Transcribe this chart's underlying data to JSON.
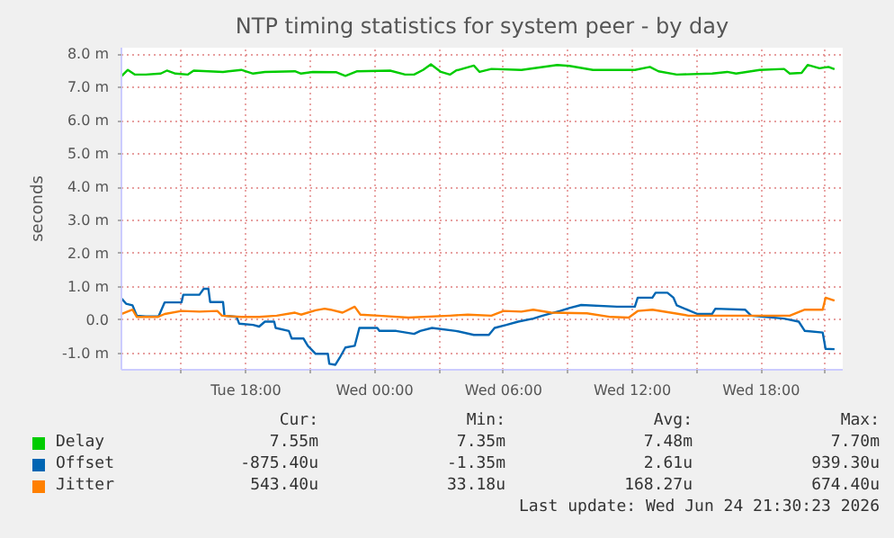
{
  "chart_data": {
    "type": "line",
    "title": "NTP timing statistics for system peer - by day",
    "ylabel": "seconds",
    "xlim": [
      "2026-06-23T12:12",
      "2026-06-24T21:48"
    ],
    "xticks": [
      {
        "value": "2026-06-23T15:00",
        "label": null
      },
      {
        "value": "2026-06-23T18:00",
        "label": "Tue 18:00"
      },
      {
        "value": "2026-06-23T21:00",
        "label": null
      },
      {
        "value": "2026-06-24T00:00",
        "label": "Wed 00:00"
      },
      {
        "value": "2026-06-24T03:00",
        "label": null
      },
      {
        "value": "2026-06-24T06:00",
        "label": "Wed 06:00"
      },
      {
        "value": "2026-06-24T09:00",
        "label": null
      },
      {
        "value": "2026-06-24T12:00",
        "label": "Wed 12:00"
      },
      {
        "value": "2026-06-24T15:00",
        "label": null
      },
      {
        "value": "2026-06-24T18:00",
        "label": "Wed 18:00"
      },
      {
        "value": "2026-06-24T21:00",
        "label": null
      }
    ],
    "ylim": [
      -1.5,
      8.2
    ],
    "yticks": [
      {
        "value": -1,
        "label": "-1.0 m"
      },
      {
        "value": 0,
        "label": "0.0"
      },
      {
        "value": 1,
        "label": "1.0 m"
      },
      {
        "value": 2,
        "label": "2.0 m"
      },
      {
        "value": 3,
        "label": "3.0 m"
      },
      {
        "value": 4,
        "label": "4.0 m"
      },
      {
        "value": 5,
        "label": "5.0 m"
      },
      {
        "value": 6,
        "label": "6.0 m"
      },
      {
        "value": 7,
        "label": "7.0 m"
      },
      {
        "value": 8,
        "label": "8.0 m"
      }
    ],
    "grid": true,
    "legend": "bottom",
    "series": [
      {
        "name": "Delay",
        "color": "#00cc00",
        "x": [
          "2026-06-23T12:13",
          "2026-06-23T12:30",
          "2026-06-23T12:50",
          "2026-06-23T13:20",
          "2026-06-23T14:02",
          "2026-06-23T14:19",
          "2026-06-23T14:43",
          "2026-06-23T15:17",
          "2026-06-23T15:34",
          "2026-06-23T16:56",
          "2026-06-23T17:47",
          "2026-06-23T18:20",
          "2026-06-23T18:53",
          "2026-06-23T20:17",
          "2026-06-23T20:34",
          "2026-06-23T21:07",
          "2026-06-23T22:13",
          "2026-06-23T22:38",
          "2026-06-23T23:11",
          "2026-06-24T00:43",
          "2026-06-24T01:25",
          "2026-06-24T01:50",
          "2026-06-24T02:15",
          "2026-06-24T02:37",
          "2026-06-24T03:05",
          "2026-06-24T03:30",
          "2026-06-24T03:47",
          "2026-06-24T04:37",
          "2026-06-24T04:53",
          "2026-06-24T05:26",
          "2026-06-24T06:50",
          "2026-06-24T08:30",
          "2026-06-24T09:04",
          "2026-06-24T10:10",
          "2026-06-24T12:07",
          "2026-06-24T12:49",
          "2026-06-24T13:13",
          "2026-06-24T14:04",
          "2026-06-24T15:43",
          "2026-06-24T16:25",
          "2026-06-24T16:50",
          "2026-06-24T17:56",
          "2026-06-24T19:04",
          "2026-06-24T19:20",
          "2026-06-24T19:53",
          "2026-06-24T20:10",
          "2026-06-24T20:43",
          "2026-06-24T21:08",
          "2026-06-24T21:25"
        ],
        "values": [
          7.35,
          7.53,
          7.39,
          7.39,
          7.42,
          7.51,
          7.42,
          7.39,
          7.51,
          7.47,
          7.53,
          7.42,
          7.47,
          7.49,
          7.42,
          7.47,
          7.46,
          7.35,
          7.49,
          7.51,
          7.39,
          7.39,
          7.53,
          7.7,
          7.47,
          7.39,
          7.51,
          7.66,
          7.47,
          7.56,
          7.53,
          7.68,
          7.65,
          7.53,
          7.53,
          7.62,
          7.49,
          7.39,
          7.42,
          7.47,
          7.42,
          7.53,
          7.56,
          7.42,
          7.44,
          7.68,
          7.58,
          7.62,
          7.55
        ]
      },
      {
        "name": "Offset",
        "color": "#0066b3",
        "x": [
          "2026-06-23T12:13",
          "2026-06-23T12:25",
          "2026-06-23T12:43",
          "2026-06-23T12:55",
          "2026-06-23T13:20",
          "2026-06-23T13:56",
          "2026-06-23T14:13",
          "2026-06-23T15:00",
          "2026-06-23T15:05",
          "2026-06-23T15:50",
          "2026-06-23T16:02",
          "2026-06-23T16:15",
          "2026-06-23T16:20",
          "2026-06-23T16:56",
          "2026-06-23T17:00",
          "2026-06-23T17:34",
          "2026-06-23T17:41",
          "2026-06-23T18:20",
          "2026-06-23T18:37",
          "2026-06-23T18:53",
          "2026-06-23T19:19",
          "2026-06-23T19:23",
          "2026-06-23T20:00",
          "2026-06-23T20:08",
          "2026-06-23T20:41",
          "2026-06-23T20:53",
          "2026-06-23T21:15",
          "2026-06-23T21:49",
          "2026-06-23T21:53",
          "2026-06-23T22:10",
          "2026-06-23T22:22",
          "2026-06-23T22:38",
          "2026-06-23T23:04",
          "2026-06-23T23:17",
          "2026-06-24T00:07",
          "2026-06-24T00:13",
          "2026-06-24T01:00",
          "2026-06-24T01:50",
          "2026-06-24T02:07",
          "2026-06-24T02:40",
          "2026-06-24T03:47",
          "2026-06-24T04:37",
          "2026-06-24T05:19",
          "2026-06-24T05:35",
          "2026-06-24T06:08",
          "2026-06-24T06:41",
          "2026-06-24T07:23",
          "2026-06-24T07:49",
          "2026-06-24T08:38",
          "2026-06-24T09:04",
          "2026-06-24T09:37",
          "2026-06-24T11:17",
          "2026-06-24T12:07",
          "2026-06-24T12:15",
          "2026-06-24T12:56",
          "2026-06-24T13:05",
          "2026-06-24T13:38",
          "2026-06-24T13:55",
          "2026-06-24T14:04",
          "2026-06-24T15:02",
          "2026-06-24T15:43",
          "2026-06-24T15:52",
          "2026-06-24T17:15",
          "2026-06-24T17:32",
          "2026-06-24T19:04",
          "2026-06-24T19:45",
          "2026-06-24T20:02",
          "2026-06-24T20:52",
          "2026-06-24T21:00",
          "2026-06-24T21:25"
        ],
        "values": [
          0.64,
          0.49,
          0.44,
          0.13,
          0.11,
          0.11,
          0.53,
          0.53,
          0.76,
          0.76,
          0.94,
          0.94,
          0.54,
          0.54,
          0.13,
          0.09,
          -0.11,
          -0.15,
          -0.2,
          -0.05,
          -0.05,
          -0.24,
          -0.33,
          -0.56,
          -0.56,
          -0.78,
          -1.02,
          -1.02,
          -1.32,
          -1.35,
          -1.14,
          -0.83,
          -0.78,
          -0.24,
          -0.24,
          -0.33,
          -0.33,
          -0.42,
          -0.33,
          -0.24,
          -0.33,
          -0.45,
          -0.45,
          -0.24,
          -0.15,
          -0.05,
          0.04,
          0.13,
          0.27,
          0.36,
          0.45,
          0.4,
          0.4,
          0.67,
          0.67,
          0.82,
          0.82,
          0.67,
          0.44,
          0.18,
          0.18,
          0.34,
          0.31,
          0.13,
          0.04,
          -0.05,
          -0.33,
          -0.38,
          -0.87,
          -0.88
        ]
      },
      {
        "name": "Jitter",
        "color": "#ff8000",
        "x": [
          "2026-06-23T12:13",
          "2026-06-23T12:43",
          "2026-06-23T12:55",
          "2026-06-23T13:53",
          "2026-06-23T14:13",
          "2026-06-23T15:00",
          "2026-06-23T15:50",
          "2026-06-23T16:40",
          "2026-06-23T16:53",
          "2026-06-23T17:47",
          "2026-06-23T18:37",
          "2026-06-23T19:26",
          "2026-06-23T20:17",
          "2026-06-23T20:34",
          "2026-06-23T21:15",
          "2026-06-23T21:40",
          "2026-06-23T21:56",
          "2026-06-23T22:30",
          "2026-06-23T23:04",
          "2026-06-23T23:20",
          "2026-06-24T00:10",
          "2026-06-24T01:34",
          "2026-06-24T03:30",
          "2026-06-24T04:20",
          "2026-06-24T05:26",
          "2026-06-24T06:00",
          "2026-06-24T06:50",
          "2026-06-24T07:23",
          "2026-06-24T08:13",
          "2026-06-24T09:53",
          "2026-06-24T11:00",
          "2026-06-24T11:50",
          "2026-06-24T12:15",
          "2026-06-24T12:56",
          "2026-06-24T13:47",
          "2026-06-24T14:37",
          "2026-06-24T16:34",
          "2026-06-24T18:13",
          "2026-06-24T19:20",
          "2026-06-24T20:02",
          "2026-06-24T20:52",
          "2026-06-24T21:00",
          "2026-06-24T21:25"
        ],
        "values": [
          0.18,
          0.31,
          0.09,
          0.09,
          0.18,
          0.27,
          0.25,
          0.27,
          0.13,
          0.09,
          0.09,
          0.13,
          0.22,
          0.16,
          0.29,
          0.34,
          0.31,
          0.22,
          0.4,
          0.16,
          0.13,
          0.07,
          0.13,
          0.16,
          0.13,
          0.27,
          0.25,
          0.31,
          0.22,
          0.2,
          0.09,
          0.07,
          0.27,
          0.31,
          0.22,
          0.13,
          0.13,
          0.13,
          0.13,
          0.31,
          0.31,
          0.67,
          0.58
        ]
      }
    ],
    "annotations": [
      "Cur:",
      "Min:",
      "Avg:",
      "Max:",
      "7.55m",
      "7.35m",
      "7.48m",
      "7.70m",
      "-875.40u",
      "-1.35m",
      "2.61u",
      "939.30u",
      "543.40u",
      "33.18u",
      "168.27u",
      "674.40u",
      "Last update: Wed Jun 24 21:30:23 2026"
    ]
  }
}
